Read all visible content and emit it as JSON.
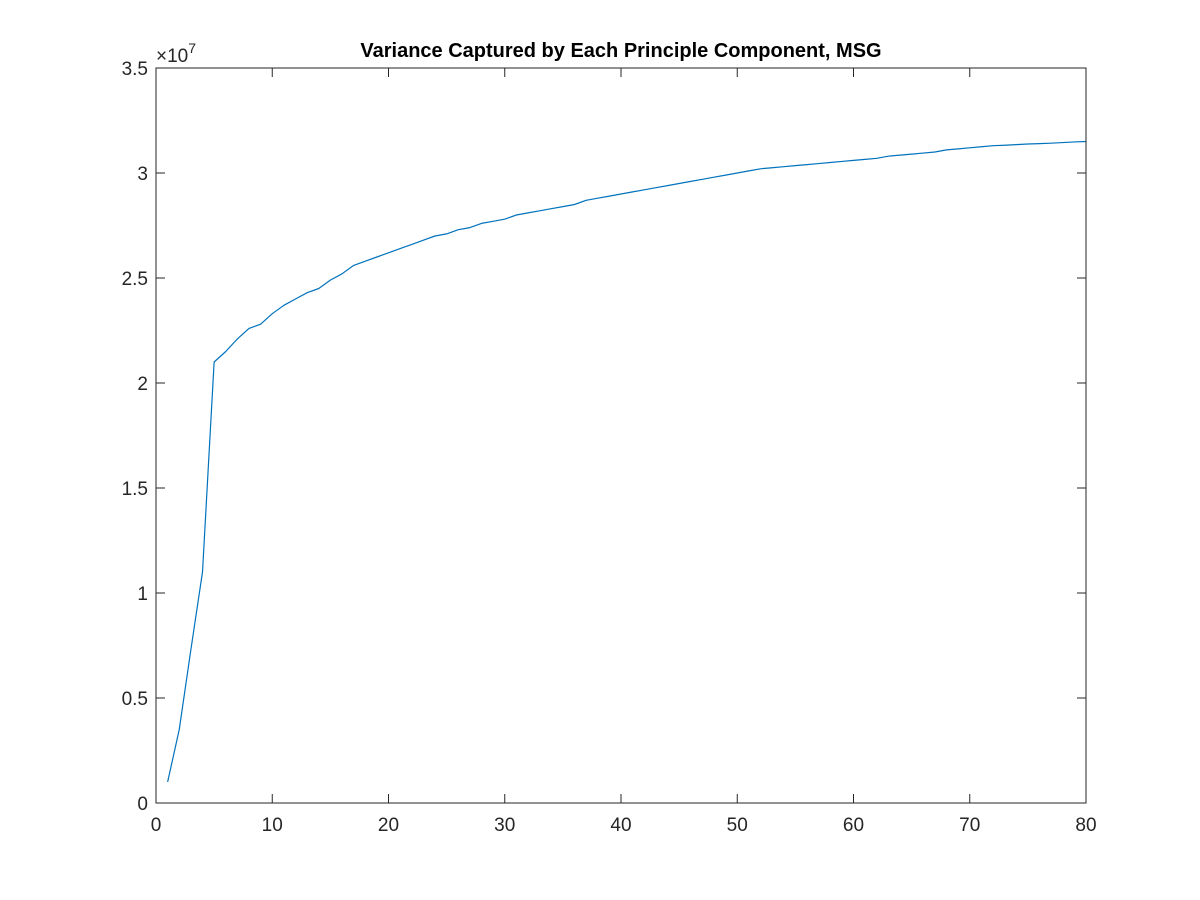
{
  "chart_data": {
    "type": "line",
    "title": "Variance Captured by Each Principle Component, MSG",
    "xlabel": "",
    "ylabel": "",
    "xlim": [
      0,
      80
    ],
    "ylim": [
      0,
      3.5
    ],
    "y_exponent_label": "×10",
    "y_exponent_power": "7",
    "x_ticks": [
      0,
      10,
      20,
      30,
      40,
      50,
      60,
      70,
      80
    ],
    "x_tick_labels": [
      "0",
      "10",
      "20",
      "30",
      "40",
      "50",
      "60",
      "70",
      "80"
    ],
    "y_ticks": [
      0,
      0.5,
      1,
      1.5,
      2,
      2.5,
      3,
      3.5
    ],
    "y_tick_labels": [
      "0",
      "0.5",
      "1",
      "1.5",
      "2",
      "2.5",
      "3",
      "3.5"
    ],
    "grid": false,
    "box": true,
    "line_color": "#0072bd",
    "axis_color": "#262626",
    "series": [
      {
        "x": [
          1,
          2,
          3,
          4,
          5,
          6,
          7,
          8,
          9,
          10,
          11,
          12,
          13,
          14,
          15,
          16,
          17,
          18,
          19,
          20,
          21,
          22,
          23,
          24,
          25,
          26,
          27,
          28,
          29,
          30,
          31,
          32,
          33,
          34,
          35,
          36,
          37,
          38,
          39,
          40,
          41,
          42,
          43,
          44,
          45,
          46,
          47,
          48,
          49,
          50,
          51,
          52,
          53,
          54,
          55,
          56,
          57,
          58,
          59,
          60,
          61,
          62,
          63,
          64,
          65,
          66,
          67,
          68,
          69,
          70,
          71,
          72,
          73,
          74,
          75,
          76,
          77,
          78,
          79,
          80
        ],
        "values": [
          0.1,
          0.35,
          0.73,
          1.1,
          2.1,
          2.15,
          2.21,
          2.26,
          2.28,
          2.33,
          2.37,
          2.4,
          2.43,
          2.45,
          2.49,
          2.52,
          2.56,
          2.58,
          2.6,
          2.62,
          2.64,
          2.66,
          2.68,
          2.7,
          2.71,
          2.73,
          2.74,
          2.76,
          2.77,
          2.78,
          2.8,
          2.81,
          2.82,
          2.83,
          2.84,
          2.85,
          2.87,
          2.88,
          2.89,
          2.9,
          2.91,
          2.92,
          2.93,
          2.94,
          2.95,
          2.96,
          2.97,
          2.98,
          2.99,
          3.0,
          3.01,
          3.02,
          3.025,
          3.03,
          3.035,
          3.04,
          3.045,
          3.05,
          3.055,
          3.06,
          3.065,
          3.07,
          3.08,
          3.085,
          3.09,
          3.095,
          3.1,
          3.11,
          3.115,
          3.12,
          3.125,
          3.13,
          3.132,
          3.135,
          3.138,
          3.14,
          3.142,
          3.145,
          3.148,
          3.15
        ]
      }
    ]
  }
}
